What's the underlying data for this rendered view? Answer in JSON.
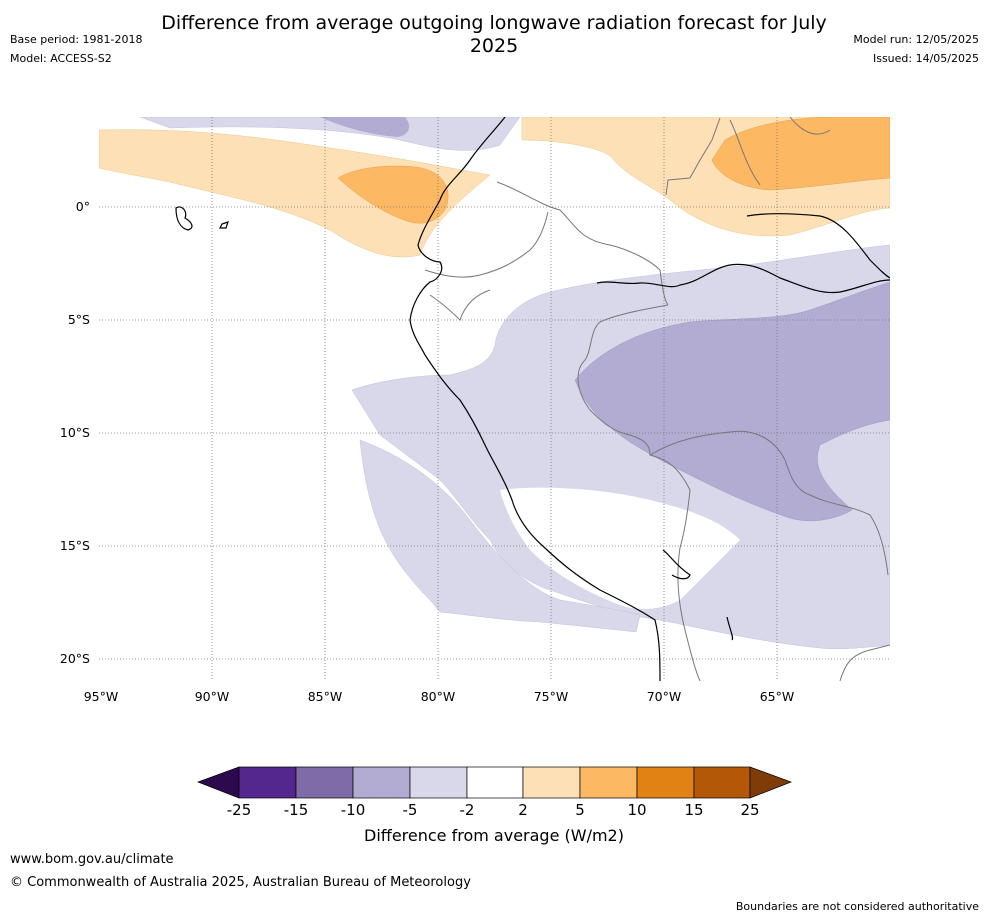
{
  "header": {
    "title": "Difference from average outgoing longwave radiation forecast for July 2025",
    "base_period": "Base period: 1981-2018",
    "model": "Model: ACCESS-S2",
    "model_run": "Model run: 12/05/2025",
    "issued": "Issued: 14/05/2025"
  },
  "map": {
    "lat_labels": [
      "0°",
      "5°S",
      "10°S",
      "15°S",
      "20°S"
    ],
    "lon_labels": [
      "95°W",
      "90°W",
      "85°W",
      "80°W",
      "75°W",
      "70°W",
      "65°W"
    ]
  },
  "legend": {
    "title": "Difference from average (W/m2)",
    "ticks": [
      "-25",
      "-15",
      "-10",
      "-5",
      "-2",
      "2",
      "5",
      "10",
      "15",
      "25"
    ],
    "colors": [
      "#2d0a4e",
      "#54278f",
      "#7e6ca8",
      "#b2abd2",
      "#d8d8ea",
      "#ffffff",
      "#fee0b6",
      "#fdb863",
      "#e08214",
      "#b35806",
      "#7f3b08"
    ]
  },
  "footer": {
    "url": "www.bom.gov.au/climate",
    "copyright": "© Commonwealth of Australia 2025, Australian Bureau of Meteorology",
    "note": "Boundaries are not considered authoritative"
  }
}
